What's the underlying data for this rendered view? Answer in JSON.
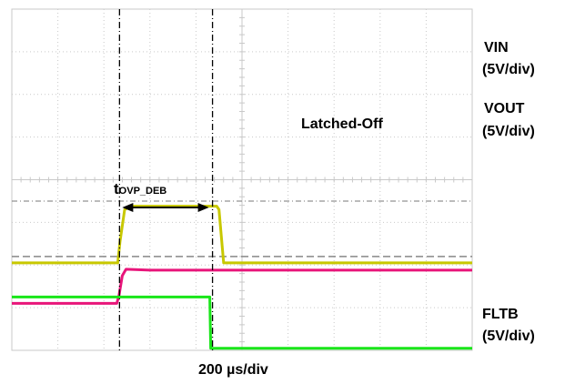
{
  "chart_data": {
    "type": "line",
    "title": "",
    "xlabel": "200 µs/div",
    "time_per_div_us": 200,
    "x_divisions": 10,
    "grid": true,
    "series": [
      {
        "name": "VIN",
        "scale": "(5V/div)",
        "color": "#c8c800",
        "points": [
          [
            0,
            2.05
          ],
          [
            2.3,
            2.05
          ],
          [
            2.35,
            2.55
          ],
          [
            2.45,
            3.3
          ],
          [
            2.6,
            3.38
          ],
          [
            4.45,
            3.38
          ],
          [
            4.5,
            3.3
          ],
          [
            4.6,
            2.05
          ],
          [
            10,
            2.05
          ]
        ]
      },
      {
        "name": "VOUT",
        "scale": "(5V/div)",
        "color": "#e8157a",
        "points": [
          [
            0,
            1.1
          ],
          [
            2.28,
            1.1
          ],
          [
            2.33,
            1.3
          ],
          [
            2.4,
            1.75
          ],
          [
            2.48,
            1.9
          ],
          [
            3.0,
            1.88
          ],
          [
            10,
            1.88
          ]
        ]
      },
      {
        "name": "FLTB",
        "scale": "(5V/div)",
        "color": "#19e619",
        "points": [
          [
            0,
            1.25
          ],
          [
            4.3,
            1.25
          ],
          [
            4.32,
            0.05
          ],
          [
            10,
            0.05
          ]
        ]
      }
    ],
    "references": {
      "ovp_threshold_level": 3.5,
      "vin_base_level": 2.2
    },
    "annotations": {
      "latched": "Latched-Off",
      "debounce_main": "t",
      "debounce_sub": "OVP_DEB"
    },
    "colors": {
      "grid": "#c9c9c9",
      "cursor": "#000000",
      "vin": "#c8c800",
      "vout": "#e8157a",
      "fltb": "#19e619"
    }
  }
}
